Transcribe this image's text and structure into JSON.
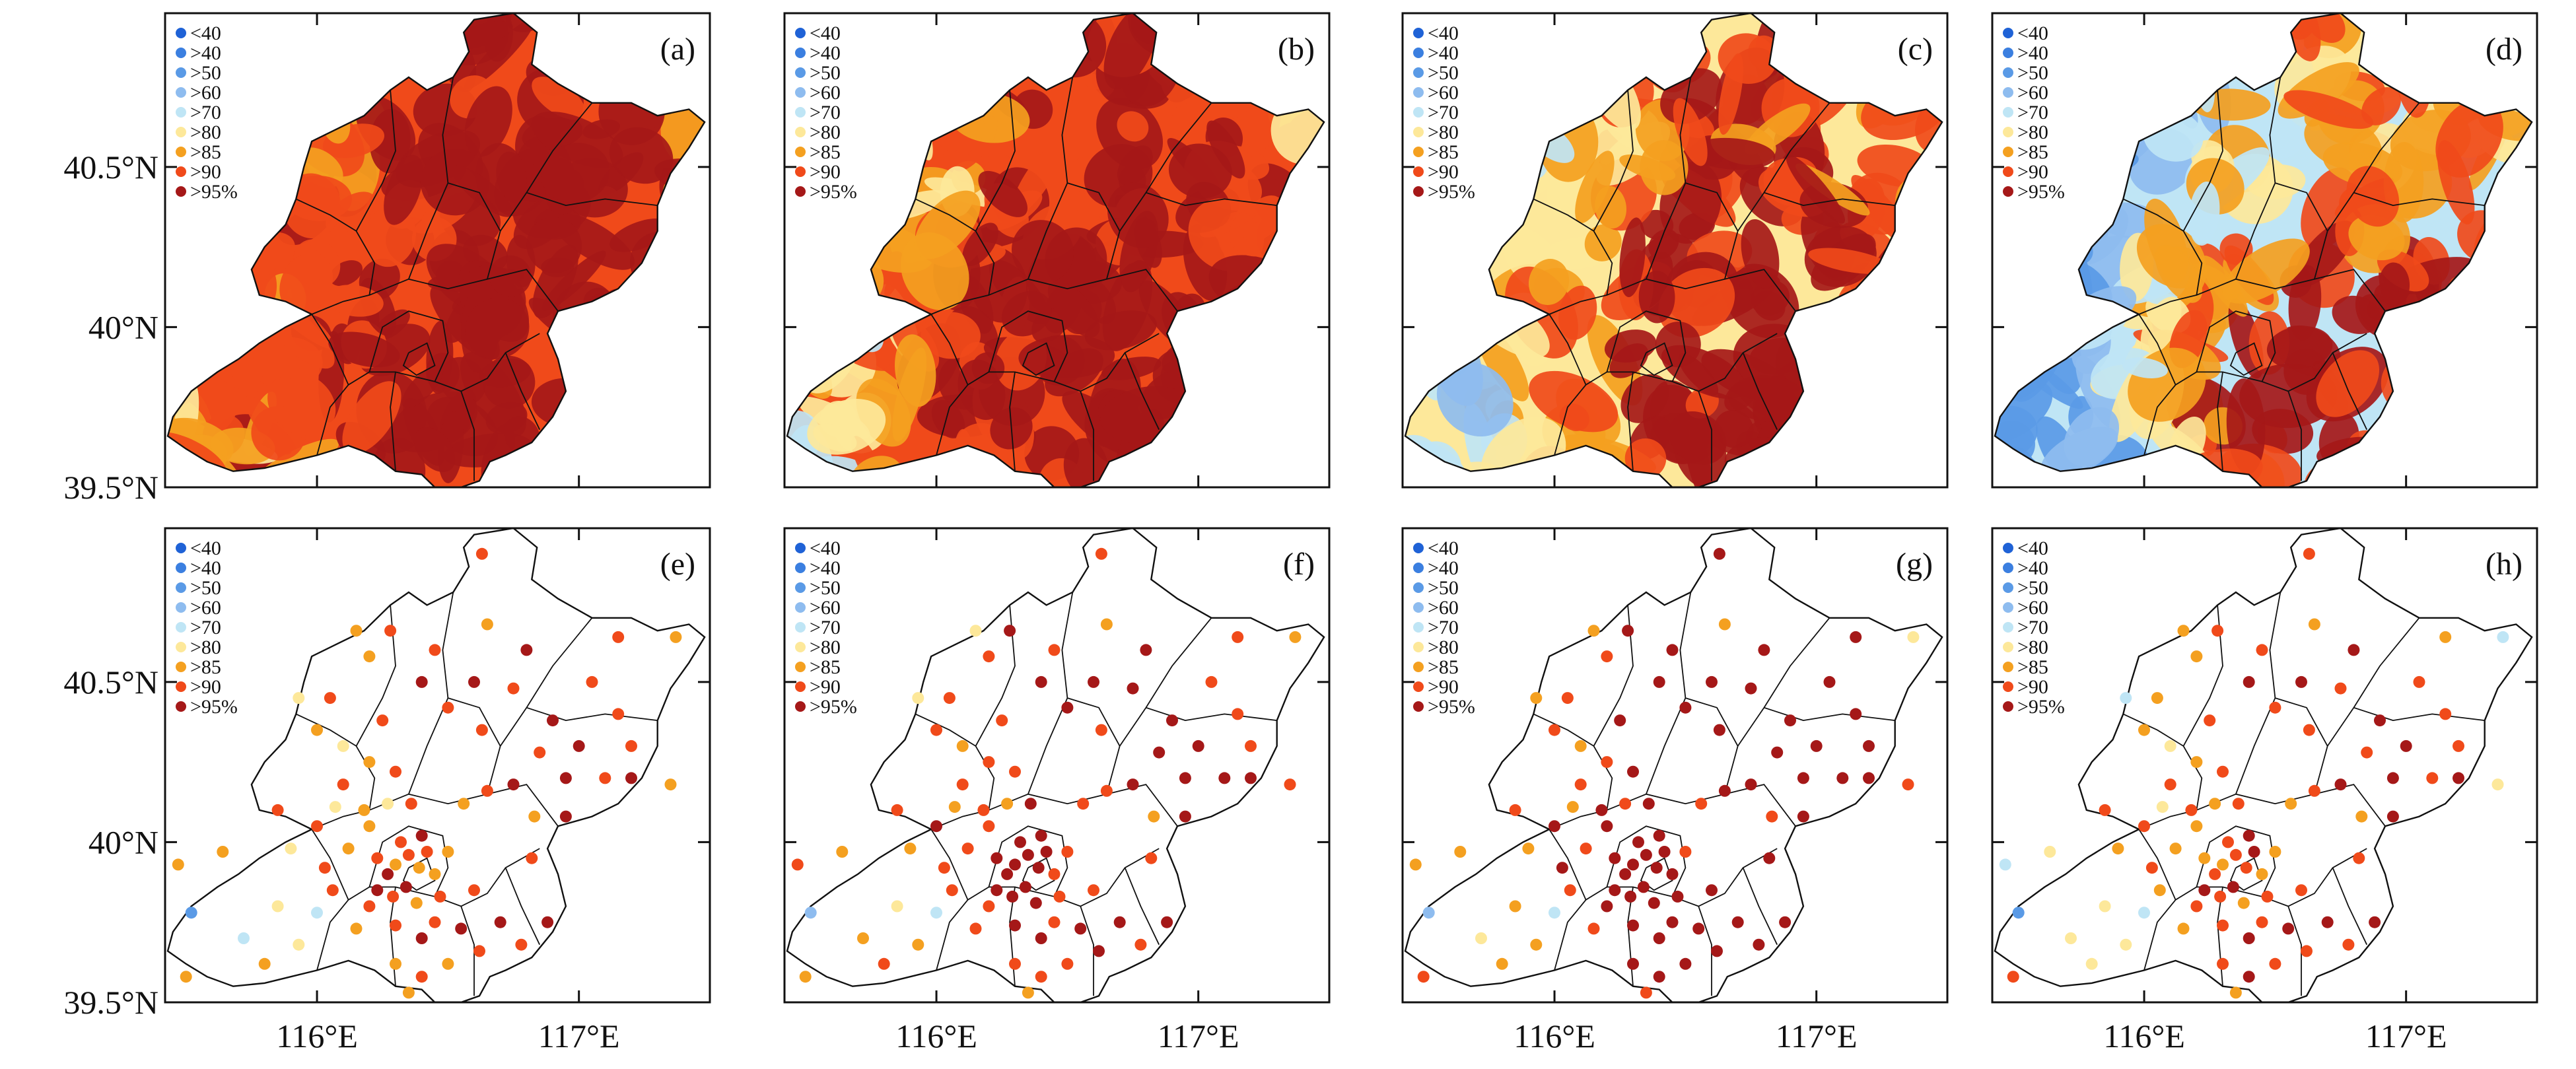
{
  "figure": {
    "x_axis": {
      "min": 115.42,
      "max": 117.5,
      "ticks": [
        116,
        117
      ],
      "tick_labels": [
        "116°E",
        "117°E"
      ]
    },
    "y_axis": {
      "min": 39.5,
      "max": 40.98,
      "ticks": [
        39.5,
        40,
        40.5
      ],
      "tick_labels": [
        "39.5°N",
        "40°N",
        "40.5°N"
      ]
    }
  },
  "legend": {
    "labels": [
      "<40",
      ">40",
      ">50",
      ">60",
      ">70",
      ">80",
      ">85",
      ">90",
      ">95%"
    ],
    "colors": [
      "#1f62d6",
      "#3b7fe0",
      "#5a9ae6",
      "#8ebcef",
      "#bfe5f5",
      "#fde89a",
      "#f4a020",
      "#f04a1a",
      "#a51818"
    ]
  },
  "panels": [
    {
      "id": "(a)",
      "kind": "field",
      "blues": 0.05
    },
    {
      "id": "(b)",
      "kind": "field",
      "blues": 0.18
    },
    {
      "id": "(c)",
      "kind": "field",
      "blues": 0.35
    },
    {
      "id": "(d)",
      "kind": "field",
      "blues": 0.6
    },
    {
      "id": "(e)",
      "kind": "stations"
    },
    {
      "id": "(f)",
      "kind": "stations"
    },
    {
      "id": "(g)",
      "kind": "stations"
    },
    {
      "id": "(h)",
      "kind": "stations"
    }
  ],
  "stations": [
    {
      "lon": 115.52,
      "lat": 39.78,
      "c": [
        2,
        3,
        3,
        2
      ]
    },
    {
      "lon": 115.47,
      "lat": 39.93,
      "c": [
        6,
        7,
        6,
        4
      ]
    },
    {
      "lon": 115.5,
      "lat": 39.58,
      "c": [
        6,
        6,
        7,
        7
      ]
    },
    {
      "lon": 115.64,
      "lat": 39.97,
      "c": [
        6,
        6,
        6,
        5
      ]
    },
    {
      "lon": 115.72,
      "lat": 39.7,
      "c": [
        4,
        6,
        5,
        5
      ]
    },
    {
      "lon": 115.8,
      "lat": 39.62,
      "c": [
        6,
        7,
        6,
        5
      ]
    },
    {
      "lon": 115.85,
      "lat": 39.8,
      "c": [
        5,
        5,
        6,
        5
      ]
    },
    {
      "lon": 115.9,
      "lat": 39.98,
      "c": [
        5,
        6,
        6,
        6
      ]
    },
    {
      "lon": 115.93,
      "lat": 39.68,
      "c": [
        5,
        6,
        6,
        5
      ]
    },
    {
      "lon": 116.0,
      "lat": 39.78,
      "c": [
        4,
        4,
        4,
        4
      ]
    },
    {
      "lon": 116.06,
      "lat": 39.85,
      "c": [
        7,
        7,
        7,
        6
      ]
    },
    {
      "lon": 115.85,
      "lat": 40.1,
      "c": [
        7,
        7,
        7,
        7
      ]
    },
    {
      "lon": 116.0,
      "lat": 40.05,
      "c": [
        7,
        8,
        8,
        7
      ]
    },
    {
      "lon": 116.07,
      "lat": 40.11,
      "c": [
        5,
        6,
        6,
        5
      ]
    },
    {
      "lon": 116.1,
      "lat": 40.18,
      "c": [
        7,
        7,
        7,
        7
      ]
    },
    {
      "lon": 116.2,
      "lat": 40.05,
      "c": [
        6,
        7,
        8,
        6
      ]
    },
    {
      "lon": 116.23,
      "lat": 39.95,
      "c": [
        7,
        8,
        8,
        6
      ]
    },
    {
      "lon": 116.27,
      "lat": 39.9,
      "c": [
        8,
        8,
        8,
        7
      ]
    },
    {
      "lon": 116.3,
      "lat": 39.93,
      "c": [
        6,
        8,
        8,
        6
      ]
    },
    {
      "lon": 116.35,
      "lat": 39.96,
      "c": [
        7,
        8,
        8,
        7
      ]
    },
    {
      "lon": 116.39,
      "lat": 39.92,
      "c": [
        6,
        8,
        8,
        7
      ]
    },
    {
      "lon": 116.42,
      "lat": 39.97,
      "c": [
        7,
        8,
        8,
        8
      ]
    },
    {
      "lon": 116.45,
      "lat": 39.9,
      "c": [
        6,
        7,
        8,
        6
      ]
    },
    {
      "lon": 116.34,
      "lat": 39.86,
      "c": [
        8,
        8,
        8,
        8
      ]
    },
    {
      "lon": 116.29,
      "lat": 39.83,
      "c": [
        7,
        8,
        8,
        7
      ]
    },
    {
      "lon": 116.38,
      "lat": 39.81,
      "c": [
        6,
        8,
        8,
        6
      ]
    },
    {
      "lon": 116.47,
      "lat": 39.83,
      "c": [
        7,
        7,
        8,
        7
      ]
    },
    {
      "lon": 116.23,
      "lat": 39.85,
      "c": [
        8,
        8,
        8,
        8
      ]
    },
    {
      "lon": 116.32,
      "lat": 40.0,
      "c": [
        7,
        8,
        8,
        7
      ]
    },
    {
      "lon": 116.4,
      "lat": 40.02,
      "c": [
        8,
        8,
        8,
        8
      ]
    },
    {
      "lon": 116.5,
      "lat": 39.97,
      "c": [
        6,
        7,
        7,
        6
      ]
    },
    {
      "lon": 116.2,
      "lat": 39.8,
      "c": [
        7,
        7,
        8,
        7
      ]
    },
    {
      "lon": 116.15,
      "lat": 39.73,
      "c": [
        6,
        7,
        7,
        6
      ]
    },
    {
      "lon": 116.3,
      "lat": 39.74,
      "c": [
        7,
        8,
        8,
        7
      ]
    },
    {
      "lon": 116.4,
      "lat": 39.7,
      "c": [
        8,
        8,
        8,
        8
      ]
    },
    {
      "lon": 116.45,
      "lat": 39.75,
      "c": [
        7,
        7,
        8,
        7
      ]
    },
    {
      "lon": 116.55,
      "lat": 39.73,
      "c": [
        8,
        8,
        8,
        8
      ]
    },
    {
      "lon": 116.6,
      "lat": 39.85,
      "c": [
        7,
        7,
        8,
        7
      ]
    },
    {
      "lon": 116.3,
      "lat": 39.62,
      "c": [
        6,
        7,
        8,
        7
      ]
    },
    {
      "lon": 116.4,
      "lat": 39.58,
      "c": [
        7,
        7,
        8,
        8
      ]
    },
    {
      "lon": 116.5,
      "lat": 39.62,
      "c": [
        6,
        7,
        8,
        7
      ]
    },
    {
      "lon": 116.35,
      "lat": 39.53,
      "c": [
        6,
        6,
        7,
        6
      ]
    },
    {
      "lon": 116.62,
      "lat": 39.66,
      "c": [
        7,
        8,
        8,
        7
      ]
    },
    {
      "lon": 116.7,
      "lat": 39.75,
      "c": [
        8,
        8,
        8,
        8
      ]
    },
    {
      "lon": 116.78,
      "lat": 39.68,
      "c": [
        7,
        7,
        8,
        7
      ]
    },
    {
      "lon": 116.88,
      "lat": 39.75,
      "c": [
        8,
        8,
        8,
        8
      ]
    },
    {
      "lon": 116.56,
      "lat": 40.12,
      "c": [
        6,
        7,
        7,
        6
      ]
    },
    {
      "lon": 116.65,
      "lat": 40.16,
      "c": [
        7,
        7,
        8,
        7
      ]
    },
    {
      "lon": 116.75,
      "lat": 40.18,
      "c": [
        8,
        8,
        8,
        8
      ]
    },
    {
      "lon": 116.83,
      "lat": 40.08,
      "c": [
        6,
        6,
        7,
        6
      ]
    },
    {
      "lon": 116.95,
      "lat": 40.2,
      "c": [
        8,
        8,
        8,
        8
      ]
    },
    {
      "lon": 117.1,
      "lat": 40.2,
      "c": [
        7,
        8,
        8,
        7
      ]
    },
    {
      "lon": 117.2,
      "lat": 40.2,
      "c": [
        8,
        8,
        8,
        8
      ]
    },
    {
      "lon": 117.35,
      "lat": 40.18,
      "c": [
        6,
        7,
        7,
        5
      ]
    },
    {
      "lon": 116.3,
      "lat": 40.22,
      "c": [
        7,
        7,
        8,
        7
      ]
    },
    {
      "lon": 116.2,
      "lat": 40.25,
      "c": [
        6,
        7,
        7,
        6
      ]
    },
    {
      "lon": 116.1,
      "lat": 40.3,
      "c": [
        5,
        6,
        6,
        5
      ]
    },
    {
      "lon": 116.0,
      "lat": 40.35,
      "c": [
        6,
        7,
        7,
        6
      ]
    },
    {
      "lon": 116.25,
      "lat": 40.38,
      "c": [
        7,
        7,
        8,
        7
      ]
    },
    {
      "lon": 116.05,
      "lat": 40.45,
      "c": [
        7,
        7,
        7,
        6
      ]
    },
    {
      "lon": 115.93,
      "lat": 40.45,
      "c": [
        5,
        5,
        6,
        4
      ]
    },
    {
      "lon": 116.2,
      "lat": 40.58,
      "c": [
        6,
        7,
        7,
        6
      ]
    },
    {
      "lon": 116.15,
      "lat": 40.66,
      "c": [
        6,
        5,
        6,
        6
      ]
    },
    {
      "lon": 116.28,
      "lat": 40.66,
      "c": [
        7,
        8,
        8,
        7
      ]
    },
    {
      "lon": 116.4,
      "lat": 40.5,
      "c": [
        8,
        8,
        8,
        8
      ]
    },
    {
      "lon": 116.5,
      "lat": 40.42,
      "c": [
        7,
        8,
        8,
        7
      ]
    },
    {
      "lon": 116.45,
      "lat": 40.6,
      "c": [
        7,
        7,
        8,
        7
      ]
    },
    {
      "lon": 116.6,
      "lat": 40.5,
      "c": [
        8,
        8,
        8,
        8
      ]
    },
    {
      "lon": 116.63,
      "lat": 40.35,
      "c": [
        7,
        7,
        8,
        7
      ]
    },
    {
      "lon": 116.65,
      "lat": 40.68,
      "c": [
        6,
        6,
        6,
        6
      ]
    },
    {
      "lon": 116.63,
      "lat": 40.9,
      "c": [
        7,
        7,
        8,
        7
      ]
    },
    {
      "lon": 116.8,
      "lat": 40.6,
      "c": [
        8,
        8,
        8,
        8
      ]
    },
    {
      "lon": 116.75,
      "lat": 40.48,
      "c": [
        7,
        8,
        8,
        7
      ]
    },
    {
      "lon": 116.9,
      "lat": 40.38,
      "c": [
        8,
        8,
        8,
        8
      ]
    },
    {
      "lon": 117.05,
      "lat": 40.5,
      "c": [
        7,
        7,
        8,
        7
      ]
    },
    {
      "lon": 117.15,
      "lat": 40.4,
      "c": [
        7,
        7,
        8,
        7
      ]
    },
    {
      "lon": 117.0,
      "lat": 40.3,
      "c": [
        8,
        8,
        8,
        8
      ]
    },
    {
      "lon": 117.2,
      "lat": 40.3,
      "c": [
        7,
        7,
        8,
        7
      ]
    },
    {
      "lon": 117.15,
      "lat": 40.64,
      "c": [
        7,
        7,
        8,
        6
      ]
    },
    {
      "lon": 117.37,
      "lat": 40.64,
      "c": [
        6,
        6,
        5,
        4
      ]
    },
    {
      "lon": 116.85,
      "lat": 40.28,
      "c": [
        7,
        8,
        8,
        7
      ]
    },
    {
      "lon": 116.95,
      "lat": 40.08,
      "c": [
        8,
        8,
        8,
        8
      ]
    },
    {
      "lon": 116.82,
      "lat": 39.95,
      "c": [
        7,
        7,
        8,
        7
      ]
    },
    {
      "lon": 116.12,
      "lat": 39.98,
      "c": [
        6,
        7,
        7,
        6
      ]
    },
    {
      "lon": 116.18,
      "lat": 40.1,
      "c": [
        6,
        7,
        8,
        7
      ]
    },
    {
      "lon": 116.03,
      "lat": 39.92,
      "c": [
        7,
        7,
        8,
        7
      ]
    },
    {
      "lon": 116.27,
      "lat": 40.12,
      "c": [
        5,
        6,
        7,
        6
      ]
    },
    {
      "lon": 116.36,
      "lat": 40.12,
      "c": [
        7,
        8,
        8,
        7
      ]
    }
  ]
}
